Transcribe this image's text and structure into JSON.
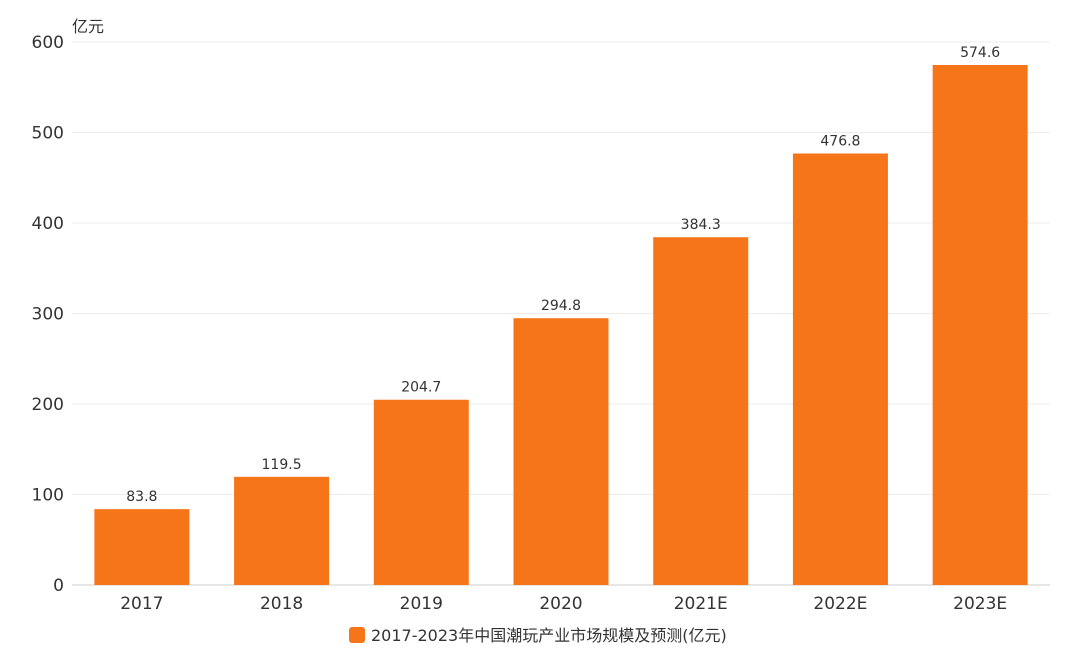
{
  "chart_data": {
    "type": "bar",
    "unit_label": "亿元",
    "categories": [
      "2017",
      "2018",
      "2019",
      "2020",
      "2021E",
      "2022E",
      "2023E"
    ],
    "series": [
      {
        "name": "2017-2023年中国潮玩产业市场规模及预测(亿元)",
        "values": [
          83.8,
          119.5,
          204.7,
          294.8,
          384.3,
          476.8,
          574.6
        ],
        "color": "#f67519"
      }
    ],
    "data_labels": [
      "83.8",
      "119.5",
      "204.7",
      "294.8",
      "384.3",
      "476.8",
      "574.6"
    ],
    "y_ticks": [
      0,
      100,
      200,
      300,
      400,
      500,
      600
    ],
    "ylim": [
      0,
      600
    ],
    "grid": true,
    "legend_position": "bottom-center"
  }
}
